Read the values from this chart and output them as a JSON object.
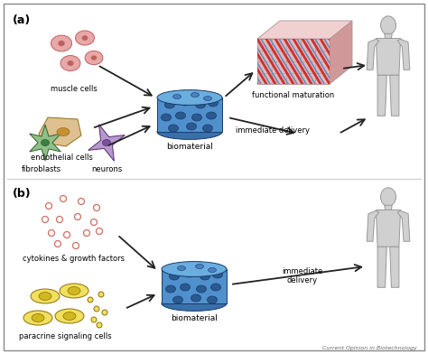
{
  "bg_color": "#f5f5f5",
  "border_color": "#888888",
  "label_a": "(a)",
  "label_b": "(b)",
  "text_biomaterial": "biomaterial",
  "text_functional_maturation": "functional maturation",
  "text_immediate_delivery_a": "immediate delivery",
  "text_immediate_delivery_b": "immediate\ndelivery",
  "text_muscle_cells": "muscle cells",
  "text_endothelial_cells": "endothelial cells",
  "text_fibroblasts": "fibroblasts",
  "text_neurons": "neurons",
  "text_cytokines": "cytokines & growth factors",
  "text_paracrine": "paracrine signaling cells",
  "text_credit": "Current Opinion in Biotechnology",
  "biomaterial_top": "#6aaee0",
  "biomaterial_body": "#5090cc",
  "biomaterial_side": "#3a70aa",
  "biomaterial_hole": "#2a5a90",
  "muscle_pink": "#e8a8a8",
  "muscle_dark": "#c06060",
  "endothelial_tan": "#dfc090",
  "endothelial_nucleus": "#c89030",
  "fibroblast_green": "#90c088",
  "fibroblast_nucleus": "#3a8040",
  "neuron_purple": "#b898cc",
  "neuron_nucleus": "#7a50a0",
  "paracrine_yellow": "#f0e060",
  "paracrine_nucleus": "#d0b820",
  "muscle_fiber_front": "#e8b8b8",
  "muscle_fiber_top": "#f0d0d0",
  "muscle_fiber_side": "#d09898",
  "muscle_fiber_red": "#cc3030",
  "muscle_fiber_blue": "#6090c0",
  "muscle_fiber_grid": "#b09090",
  "human_body_fill": "#d0d0d0",
  "human_body_edge": "#999999",
  "cytokine_dot_color": "#cc7060",
  "arrow_color": "#222222",
  "divider_color": "#cccccc"
}
